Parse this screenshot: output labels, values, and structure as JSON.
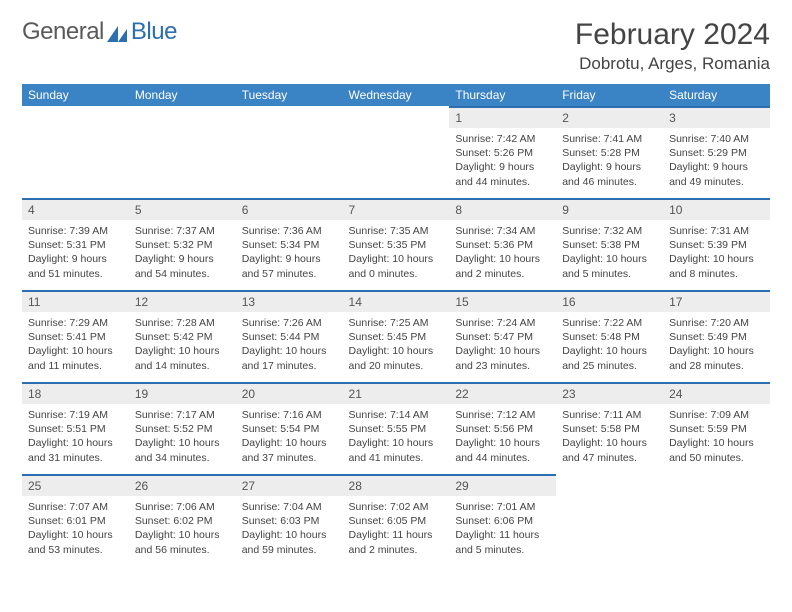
{
  "brand": {
    "general": "General",
    "blue": "Blue"
  },
  "header": {
    "title": "February 2024",
    "location": "Dobrotu, Arges, Romania"
  },
  "theme": {
    "header_bg": "#3a83c4",
    "accent": "#2b6fb0",
    "daynum_bg": "#ededed",
    "text": "#444444",
    "page_bg": "#ffffff"
  },
  "labels": {
    "sunrise": "Sunrise:",
    "sunset": "Sunset:",
    "daylight": "Daylight:"
  },
  "weekdays": [
    "Sunday",
    "Monday",
    "Tuesday",
    "Wednesday",
    "Thursday",
    "Friday",
    "Saturday"
  ],
  "calendar": {
    "first_weekday_index": 4,
    "num_days": 29,
    "fontsize_daynum": 12,
    "fontsize_body": 10.5
  },
  "days": [
    {
      "n": 1,
      "sunrise": "7:42 AM",
      "sunset": "5:26 PM",
      "daylight": "9 hours and 44 minutes."
    },
    {
      "n": 2,
      "sunrise": "7:41 AM",
      "sunset": "5:28 PM",
      "daylight": "9 hours and 46 minutes."
    },
    {
      "n": 3,
      "sunrise": "7:40 AM",
      "sunset": "5:29 PM",
      "daylight": "9 hours and 49 minutes."
    },
    {
      "n": 4,
      "sunrise": "7:39 AM",
      "sunset": "5:31 PM",
      "daylight": "9 hours and 51 minutes."
    },
    {
      "n": 5,
      "sunrise": "7:37 AM",
      "sunset": "5:32 PM",
      "daylight": "9 hours and 54 minutes."
    },
    {
      "n": 6,
      "sunrise": "7:36 AM",
      "sunset": "5:34 PM",
      "daylight": "9 hours and 57 minutes."
    },
    {
      "n": 7,
      "sunrise": "7:35 AM",
      "sunset": "5:35 PM",
      "daylight": "10 hours and 0 minutes."
    },
    {
      "n": 8,
      "sunrise": "7:34 AM",
      "sunset": "5:36 PM",
      "daylight": "10 hours and 2 minutes."
    },
    {
      "n": 9,
      "sunrise": "7:32 AM",
      "sunset": "5:38 PM",
      "daylight": "10 hours and 5 minutes."
    },
    {
      "n": 10,
      "sunrise": "7:31 AM",
      "sunset": "5:39 PM",
      "daylight": "10 hours and 8 minutes."
    },
    {
      "n": 11,
      "sunrise": "7:29 AM",
      "sunset": "5:41 PM",
      "daylight": "10 hours and 11 minutes."
    },
    {
      "n": 12,
      "sunrise": "7:28 AM",
      "sunset": "5:42 PM",
      "daylight": "10 hours and 14 minutes."
    },
    {
      "n": 13,
      "sunrise": "7:26 AM",
      "sunset": "5:44 PM",
      "daylight": "10 hours and 17 minutes."
    },
    {
      "n": 14,
      "sunrise": "7:25 AM",
      "sunset": "5:45 PM",
      "daylight": "10 hours and 20 minutes."
    },
    {
      "n": 15,
      "sunrise": "7:24 AM",
      "sunset": "5:47 PM",
      "daylight": "10 hours and 23 minutes."
    },
    {
      "n": 16,
      "sunrise": "7:22 AM",
      "sunset": "5:48 PM",
      "daylight": "10 hours and 25 minutes."
    },
    {
      "n": 17,
      "sunrise": "7:20 AM",
      "sunset": "5:49 PM",
      "daylight": "10 hours and 28 minutes."
    },
    {
      "n": 18,
      "sunrise": "7:19 AM",
      "sunset": "5:51 PM",
      "daylight": "10 hours and 31 minutes."
    },
    {
      "n": 19,
      "sunrise": "7:17 AM",
      "sunset": "5:52 PM",
      "daylight": "10 hours and 34 minutes."
    },
    {
      "n": 20,
      "sunrise": "7:16 AM",
      "sunset": "5:54 PM",
      "daylight": "10 hours and 37 minutes."
    },
    {
      "n": 21,
      "sunrise": "7:14 AM",
      "sunset": "5:55 PM",
      "daylight": "10 hours and 41 minutes."
    },
    {
      "n": 22,
      "sunrise": "7:12 AM",
      "sunset": "5:56 PM",
      "daylight": "10 hours and 44 minutes."
    },
    {
      "n": 23,
      "sunrise": "7:11 AM",
      "sunset": "5:58 PM",
      "daylight": "10 hours and 47 minutes."
    },
    {
      "n": 24,
      "sunrise": "7:09 AM",
      "sunset": "5:59 PM",
      "daylight": "10 hours and 50 minutes."
    },
    {
      "n": 25,
      "sunrise": "7:07 AM",
      "sunset": "6:01 PM",
      "daylight": "10 hours and 53 minutes."
    },
    {
      "n": 26,
      "sunrise": "7:06 AM",
      "sunset": "6:02 PM",
      "daylight": "10 hours and 56 minutes."
    },
    {
      "n": 27,
      "sunrise": "7:04 AM",
      "sunset": "6:03 PM",
      "daylight": "10 hours and 59 minutes."
    },
    {
      "n": 28,
      "sunrise": "7:02 AM",
      "sunset": "6:05 PM",
      "daylight": "11 hours and 2 minutes."
    },
    {
      "n": 29,
      "sunrise": "7:01 AM",
      "sunset": "6:06 PM",
      "daylight": "11 hours and 5 minutes."
    }
  ]
}
